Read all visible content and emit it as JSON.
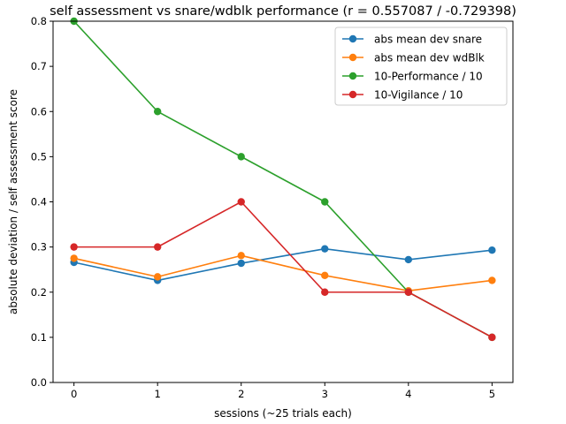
{
  "chart_data": {
    "type": "line",
    "title": "self assessment vs snare/wdblk performance (r = 0.557087 / -0.729398)",
    "xlabel": "sessions (~25 trials each)",
    "ylabel": "absolute deviation / self assessment score",
    "xlim": [
      -0.25,
      5.25
    ],
    "ylim": [
      0.0,
      0.8
    ],
    "x": [
      0,
      1,
      2,
      3,
      4,
      5
    ],
    "xticks": [
      "0",
      "1",
      "2",
      "3",
      "4",
      "5"
    ],
    "yticks": [
      "0.0",
      "0.1",
      "0.2",
      "0.3",
      "0.4",
      "0.5",
      "0.6",
      "0.7",
      "0.8"
    ],
    "grid": false,
    "legend_position": "top-right",
    "series": [
      {
        "name": "abs mean dev snare",
        "color": "#1f77b4",
        "values": [
          0.266,
          0.226,
          0.264,
          0.296,
          0.272,
          0.293
        ]
      },
      {
        "name": "abs mean dev wdBlk",
        "color": "#ff7f0e",
        "values": [
          0.275,
          0.234,
          0.281,
          0.237,
          0.203,
          0.226
        ]
      },
      {
        "name": "10-Performance / 10",
        "color": "#2ca02c",
        "values": [
          0.8,
          0.6,
          0.5,
          0.4,
          0.2,
          0.1
        ]
      },
      {
        "name": "10-Vigilance / 10",
        "color": "#d62728",
        "values": [
          0.3,
          0.3,
          0.4,
          0.2,
          0.2,
          0.1
        ]
      }
    ]
  }
}
